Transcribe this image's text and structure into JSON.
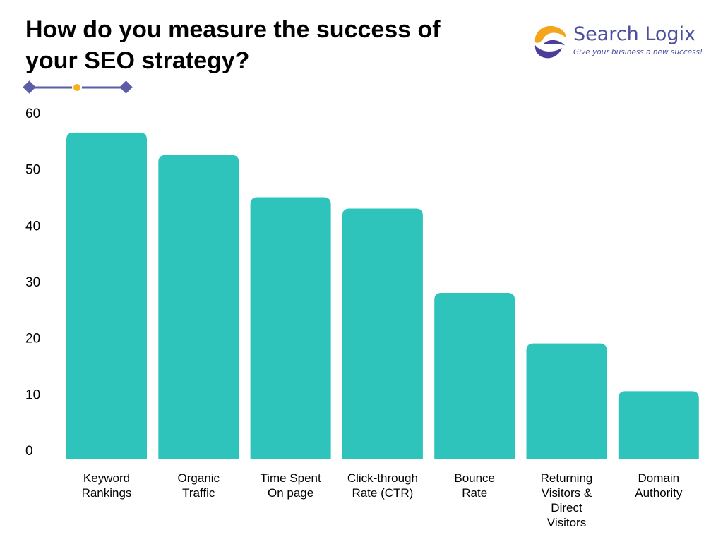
{
  "header": {
    "title_lines": [
      "How do you measure the success of",
      "your SEO strategy?"
    ]
  },
  "logo": {
    "name": "Search Logix",
    "tagline": "Give your business a new success!"
  },
  "colors": {
    "bar": "#2ec4bc",
    "decoration_line": "#5b5ea6",
    "decoration_dot": "#f2b51f",
    "logo_text": "#4d4e9c",
    "logo_orange": "#f4a51c",
    "logo_purple": "#4a3e9a"
  },
  "chart_data": {
    "type": "bar",
    "title": "How do you measure the success of your SEO strategy?",
    "categories": [
      [
        "Keyword",
        "Rankings"
      ],
      [
        "Organic",
        "Traffic"
      ],
      [
        "Time Spent",
        "On page"
      ],
      [
        "Click-through",
        "Rate (CTR)"
      ],
      [
        "Bounce",
        "Rate"
      ],
      [
        "Returning",
        "Visitors &",
        "Direct",
        "Visitors"
      ],
      [
        "Domain",
        "Authority"
      ]
    ],
    "values": [
      58,
      54,
      46.5,
      44.5,
      29.5,
      20.5,
      12
    ],
    "ylim": [
      0,
      60
    ],
    "yticks": [
      "0",
      "10",
      "20",
      "30",
      "40",
      "50",
      "60"
    ],
    "xlabel": "",
    "ylabel": "",
    "grid": false,
    "legend": "none"
  }
}
